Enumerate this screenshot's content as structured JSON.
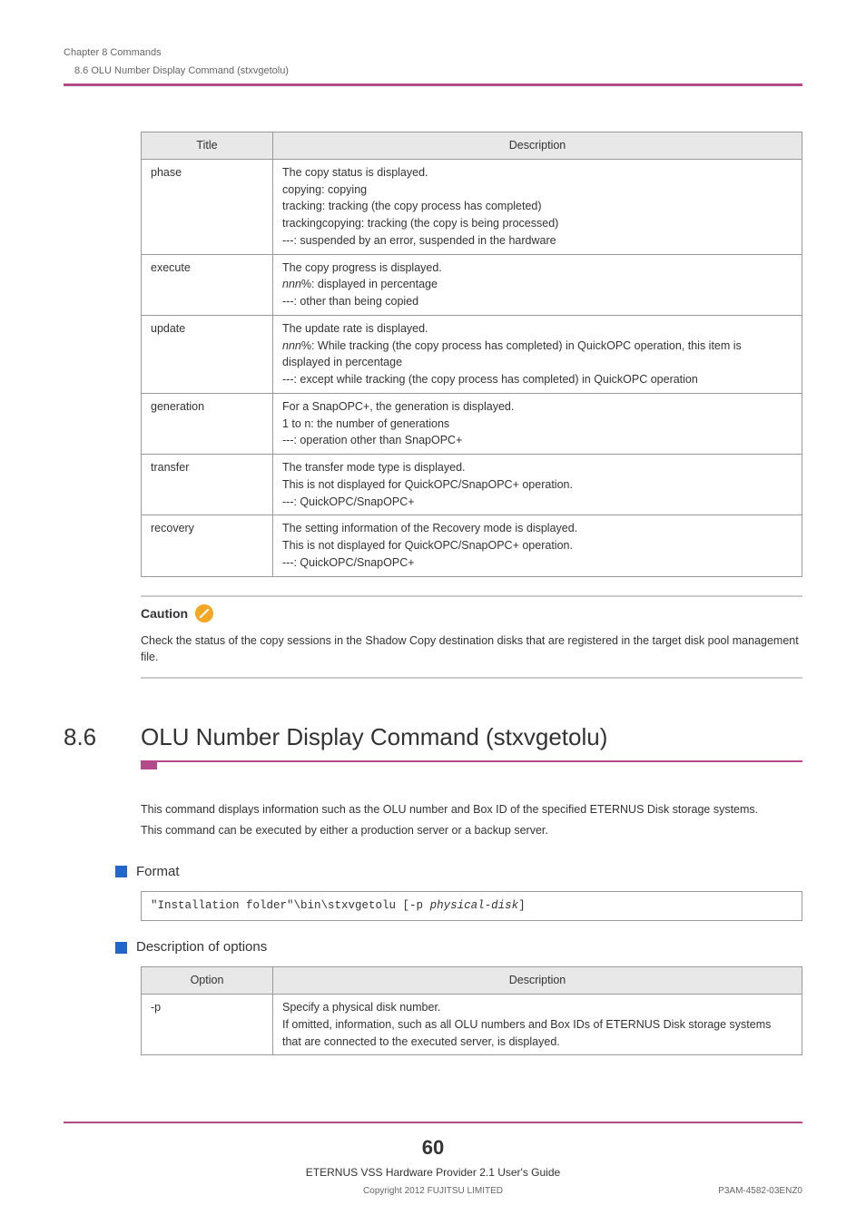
{
  "header": {
    "chapter": "Chapter 8  Commands",
    "sub": "8.6  OLU Number Display Command (stxvgetolu)"
  },
  "table1": {
    "col_title": "Title",
    "col_desc": "Description",
    "rows": [
      {
        "title": "phase",
        "desc": "The copy status is displayed.\ncopying: copying\ntracking: tracking (the copy process has completed)\ntrackingcopying: tracking (the copy is being processed)\n---: suspended by an error, suspended in the hardware"
      },
      {
        "title": "execute",
        "desc_parts": [
          {
            "t": "The copy progress is displayed.\n"
          },
          {
            "t": "nnn",
            "i": true
          },
          {
            "t": "%: displayed in percentage\n---: other than being copied"
          }
        ]
      },
      {
        "title": "update",
        "desc_parts": [
          {
            "t": "The update rate is displayed.\n"
          },
          {
            "t": "nnn",
            "i": true
          },
          {
            "t": "%: While tracking (the copy process has completed) in QuickOPC operation, this item is displayed in percentage\n---: except while tracking (the copy process has completed) in QuickOPC operation"
          }
        ]
      },
      {
        "title": "generation",
        "desc": "For a SnapOPC+, the generation is displayed.\n1 to n: the number of generations\n---: operation other than SnapOPC+"
      },
      {
        "title": "transfer",
        "desc": "The transfer mode type is displayed.\nThis is not displayed for QuickOPC/SnapOPC+ operation.\n---: QuickOPC/SnapOPC+"
      },
      {
        "title": "recovery",
        "desc": "The setting information of the Recovery mode is displayed.\nThis is not displayed for QuickOPC/SnapOPC+ operation.\n---: QuickOPC/SnapOPC+"
      }
    ]
  },
  "caution": {
    "label": "Caution",
    "text": "Check the status of the copy sessions in the Shadow Copy destination disks that are registered in the target disk pool management file."
  },
  "section": {
    "num": "8.6",
    "title": "OLU Number Display Command (stxvgetolu)",
    "body1": "This command displays information such as the OLU number and Box ID of the specified ETERNUS Disk storage systems.",
    "body2": "This command can be executed by either a production server or a backup server."
  },
  "format": {
    "heading": "Format",
    "code_prefix": "\"Installation folder\"\\bin\\stxvgetolu [-p ",
    "code_italic": "physical-disk",
    "code_suffix": "]"
  },
  "options": {
    "heading": "Description of options",
    "col_option": "Option",
    "col_desc": "Description",
    "rows": [
      {
        "opt": "-p",
        "desc": "Specify a physical disk number.\nIf omitted, information, such as all OLU numbers and Box IDs of ETERNUS Disk storage systems that are connected to the executed server, is displayed."
      }
    ]
  },
  "footer": {
    "page": "60",
    "line": "ETERNUS VSS Hardware Provider 2.1 User's Guide",
    "copyright": "Copyright 2012 FUJITSU LIMITED",
    "code": "P3AM-4582-03ENZ0"
  },
  "colors": {
    "accent": "#b54a8a",
    "blue": "#2266cc",
    "orange": "#f5a623"
  }
}
